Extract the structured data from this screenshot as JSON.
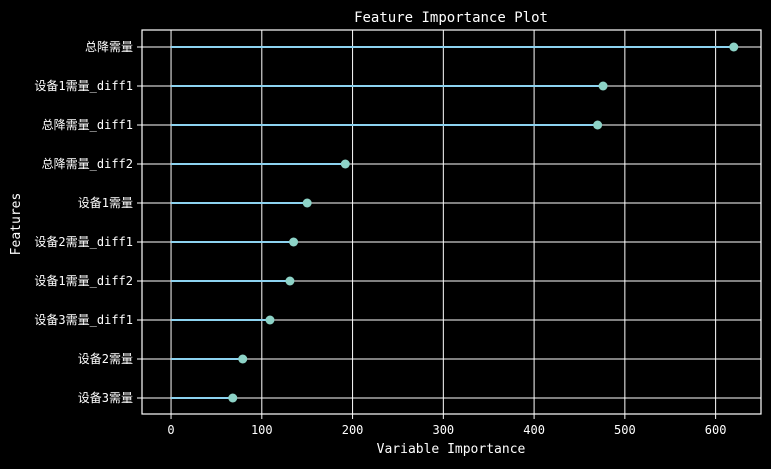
{
  "chart_data": {
    "type": "lollipop",
    "title": "Feature Importance Plot",
    "xlabel": "Variable Importance",
    "ylabel": "Features",
    "xlim": [
      -32,
      650
    ],
    "xticks": [
      0,
      100,
      200,
      300,
      400,
      500,
      600
    ],
    "xtick_labels": [
      "0",
      "100",
      "200",
      "300",
      "400",
      "500",
      "600"
    ],
    "grid": true,
    "categories": [
      "总降需量",
      "设备1需量_diff1",
      "总降需量_diff1",
      "总降需量_diff2",
      "设备1需量",
      "设备2需量_diff1",
      "设备1需量_diff2",
      "设备3需量_diff1",
      "设备2需量",
      "设备3需量"
    ],
    "values": [
      620,
      476,
      470,
      192,
      150,
      135,
      131,
      109,
      79,
      68
    ]
  },
  "colors": {
    "background": "#000000",
    "axes_frame": "#ffffff",
    "grid": "#ffffff",
    "stem": "#8dd3f0",
    "marker": "#8dd3c7",
    "text": "#ffffff"
  }
}
